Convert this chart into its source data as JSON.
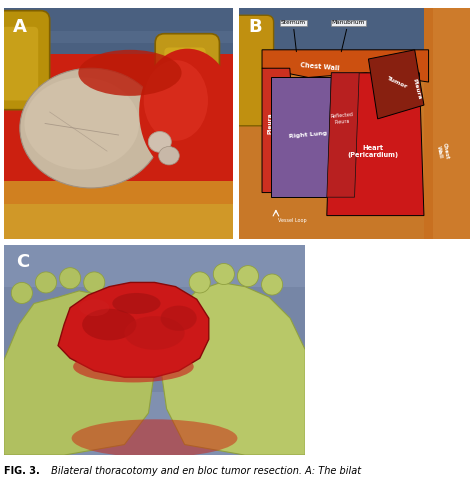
{
  "bg_color": "#ffffff",
  "caption_fontsize": 7.0,
  "label_fontsize": 13,
  "panel_A": {
    "bg": "#c03010",
    "blue_drape_top": "#4a6080",
    "blue_drape_bottom": "#5a7090",
    "retractor_left": "#b8900a",
    "retractor_right": "#c09818",
    "lung_color": "#c8b8a8",
    "blood_color": "#cc2010",
    "chest_color": "#d08020",
    "label": "A",
    "label_color": "white"
  },
  "panel_B": {
    "bg_orange": "#c87828",
    "blue_drape": "#4a6080",
    "retractor": "#b8900a",
    "chest_wall": "#cc6010",
    "pleura_left": "#cc3828",
    "lung_purple": "#7a5898",
    "heart_red": "#cc1818",
    "tumor_dark": "#882010",
    "reflected_pleura": "#bb2828",
    "label": "B",
    "label_color": "white"
  },
  "panel_C": {
    "bg_blue": "#7080a0",
    "glove_left": "#b8c870",
    "glove_right": "#c8d880",
    "specimen_red": "#cc1818",
    "label": "C",
    "label_color": "white"
  },
  "caption_bold": "FIG. 3.",
  "caption_text": " Bilateral thoracotomy and en bloc tumor resection. A: The bilat"
}
